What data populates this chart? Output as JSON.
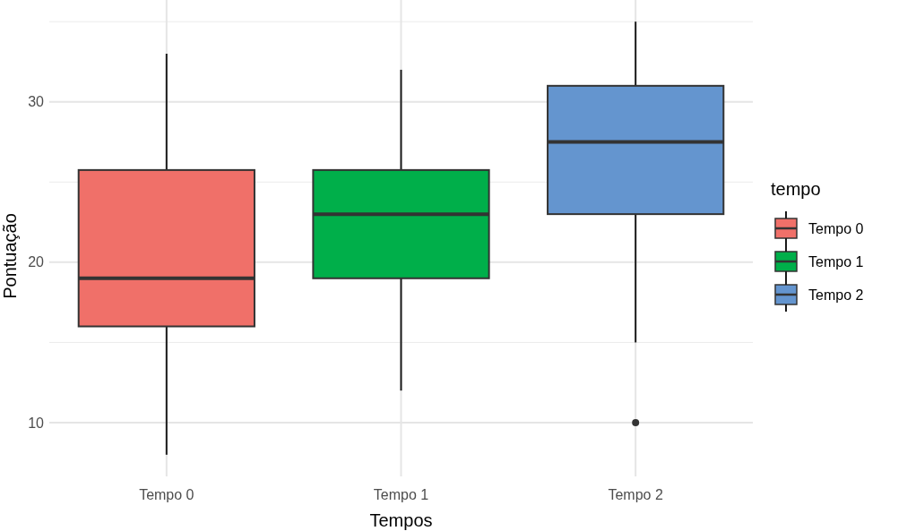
{
  "chart_data": {
    "type": "box",
    "xlabel": "Tempos",
    "ylabel": "Pontuação",
    "legend_title": "tempo",
    "categories": [
      "Tempo 0",
      "Tempo 1",
      "Tempo 2"
    ],
    "series": [
      {
        "name": "Tempo 0",
        "color": "#f07069",
        "boxes": [
          {
            "low": 8,
            "q1": 16,
            "median": 19,
            "q3": 25.75,
            "high": 33
          },
          null,
          null
        ]
      },
      {
        "name": "Tempo 1",
        "color": "#00af4a",
        "boxes": [
          null,
          {
            "low": 12,
            "q1": 19,
            "median": 23,
            "q3": 25.75,
            "high": 32
          },
          null
        ]
      },
      {
        "name": "Tempo 2",
        "color": "#6495cf",
        "boxes": [
          null,
          null,
          {
            "low": 15,
            "q1": 23,
            "median": 27.5,
            "q3": 31,
            "high": 35,
            "outliers": [
              10
            ]
          }
        ]
      }
    ],
    "ylim": [
      6.65,
      36.35
    ],
    "yticks": [
      10,
      20,
      30
    ],
    "grid": true,
    "legend": "right"
  }
}
